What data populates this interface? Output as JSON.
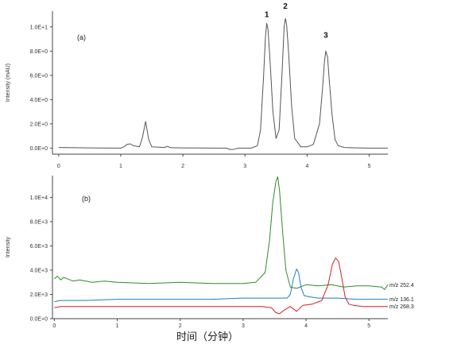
{
  "chart_data": [
    {
      "type": "line",
      "panel_label": "(a)",
      "xlabel": "",
      "ylabel": "Intensity (mAU)",
      "xlim": [
        -0.1,
        5.3
      ],
      "ylim": [
        -0.05,
        1.13
      ],
      "x_ticks": [
        "0",
        "1",
        "2",
        "3",
        "4",
        "5"
      ],
      "y_ticks": [
        "0.0E+0",
        "2.0E+0",
        "4.0E+0",
        "6.0E+0",
        "8.0E+0",
        "1.0E+1"
      ],
      "y_tick_values": [
        0.0,
        0.2,
        0.4,
        0.6,
        0.8,
        1.0
      ],
      "peak_labels": [
        {
          "text": "1",
          "x": 3.35,
          "y": 1.08
        },
        {
          "text": "2",
          "x": 3.65,
          "y": 1.15
        },
        {
          "text": "3",
          "x": 4.3,
          "y": 0.91
        }
      ],
      "colors": {
        "trace": "#555555"
      },
      "series": [
        {
          "name": "",
          "color": "#555555",
          "x": [
            0.0,
            0.5,
            1.0,
            1.05,
            1.1,
            1.15,
            1.2,
            1.3,
            1.35,
            1.4,
            1.45,
            1.5,
            1.7,
            1.75,
            1.8,
            2.0,
            2.5,
            2.7,
            2.75,
            2.8,
            2.9,
            3.1,
            3.2,
            3.25,
            3.3,
            3.33,
            3.35,
            3.37,
            3.4,
            3.45,
            3.5,
            3.55,
            3.6,
            3.63,
            3.65,
            3.67,
            3.7,
            3.75,
            3.8,
            3.9,
            4.0,
            4.1,
            4.2,
            4.25,
            4.28,
            4.3,
            4.33,
            4.35,
            4.4,
            4.45,
            4.5,
            4.6,
            4.8,
            5.0,
            5.3
          ],
          "y": [
            0.005,
            0.002,
            0.0,
            0.01,
            0.03,
            0.035,
            0.02,
            0.01,
            0.09,
            0.22,
            0.07,
            0.01,
            0.005,
            0.015,
            0.003,
            0.002,
            0.0,
            0.0,
            -0.01,
            -0.012,
            0.0,
            0.0,
            0.02,
            0.15,
            0.6,
            0.92,
            1.03,
            0.98,
            0.75,
            0.3,
            0.08,
            0.15,
            0.65,
            1.0,
            1.07,
            1.02,
            0.8,
            0.35,
            0.08,
            0.01,
            0.01,
            0.03,
            0.2,
            0.5,
            0.72,
            0.8,
            0.75,
            0.6,
            0.28,
            0.07,
            0.02,
            0.005,
            0.002,
            0.0,
            0.0
          ]
        }
      ]
    },
    {
      "type": "line",
      "panel_label": "(b)",
      "xlabel": "时间（分钟）",
      "ylabel": "Intensity",
      "xlim": [
        -0.03,
        5.3
      ],
      "ylim": [
        0.0,
        1.18
      ],
      "x_ticks": [
        "0",
        "1",
        "2",
        "3",
        "4",
        "5"
      ],
      "y_ticks": [
        "0.0E+0",
        "2.0E+3",
        "4.0E+3",
        "6.0E+3",
        "8.0E+3",
        "1.0E+4"
      ],
      "y_tick_values": [
        0.0,
        0.2,
        0.4,
        0.6,
        0.8,
        1.0
      ],
      "colors": {
        "green": "#2e8b2e",
        "blue": "#1f7fc0",
        "red": "#d62020"
      },
      "series": [
        {
          "name": "m/z 252.4",
          "color": "#2e8b2e",
          "x": [
            0.0,
            0.05,
            0.1,
            0.15,
            0.2,
            0.3,
            0.4,
            0.6,
            0.8,
            1.0,
            1.5,
            2.0,
            2.5,
            3.0,
            3.2,
            3.35,
            3.42,
            3.47,
            3.52,
            3.55,
            3.58,
            3.63,
            3.68,
            3.75,
            3.85,
            4.0,
            4.2,
            4.4,
            4.6,
            4.8,
            5.0,
            5.2,
            5.25,
            5.3
          ],
          "y": [
            0.33,
            0.35,
            0.32,
            0.34,
            0.33,
            0.31,
            0.32,
            0.3,
            0.31,
            0.3,
            0.29,
            0.3,
            0.29,
            0.29,
            0.3,
            0.38,
            0.65,
            0.95,
            1.13,
            1.17,
            1.05,
            0.7,
            0.4,
            0.26,
            0.25,
            0.28,
            0.27,
            0.28,
            0.26,
            0.27,
            0.27,
            0.26,
            0.24,
            0.28
          ]
        },
        {
          "name": "m/z 136.1",
          "color": "#1f7fc0",
          "x": [
            0.0,
            0.1,
            0.5,
            1.0,
            1.5,
            2.0,
            2.5,
            3.0,
            3.5,
            3.7,
            3.75,
            3.8,
            3.85,
            3.88,
            3.92,
            3.97,
            4.05,
            4.2,
            4.5,
            4.8,
            5.0,
            5.3
          ],
          "y": [
            0.14,
            0.15,
            0.15,
            0.16,
            0.16,
            0.16,
            0.16,
            0.17,
            0.17,
            0.17,
            0.2,
            0.33,
            0.41,
            0.38,
            0.26,
            0.19,
            0.18,
            0.17,
            0.17,
            0.16,
            0.16,
            0.16
          ]
        },
        {
          "name": "m/z 268.3",
          "color": "#d62020",
          "x": [
            0.0,
            0.1,
            0.5,
            1.0,
            1.5,
            2.0,
            2.5,
            3.0,
            3.3,
            3.45,
            3.52,
            3.58,
            3.65,
            3.75,
            3.85,
            3.95,
            4.1,
            4.25,
            4.35,
            4.42,
            4.47,
            4.52,
            4.57,
            4.62,
            4.68,
            4.75,
            4.9,
            5.1,
            5.3
          ],
          "y": [
            0.09,
            0.1,
            0.1,
            0.1,
            0.1,
            0.1,
            0.1,
            0.1,
            0.1,
            0.09,
            0.05,
            0.04,
            0.07,
            0.1,
            0.06,
            0.11,
            0.12,
            0.15,
            0.28,
            0.45,
            0.5,
            0.47,
            0.33,
            0.18,
            0.12,
            0.11,
            0.1,
            0.1,
            0.1
          ]
        }
      ]
    }
  ]
}
